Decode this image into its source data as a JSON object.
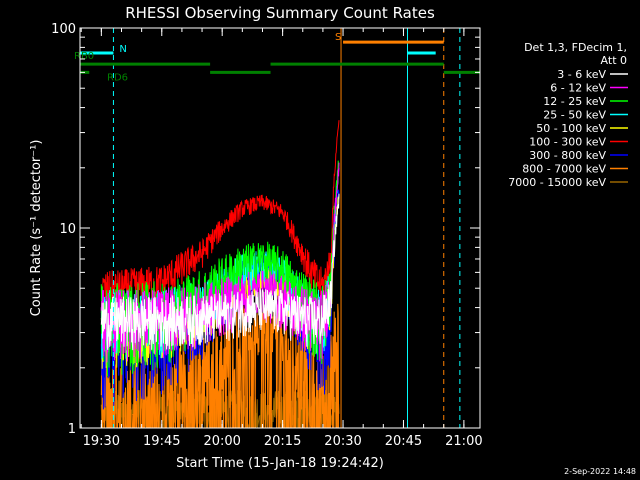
{
  "chart_data": {
    "type": "line",
    "title": "RHESSI Observing Summary Count Rates",
    "xlabel": "Start Time (15-Jan-18 19:24:42)",
    "ylabel": "Count Rate (s⁻¹ detector⁻¹)",
    "y_scale": "log",
    "ylim": [
      1,
      100
    ],
    "xlim": [
      "19:24:42",
      "21:04"
    ],
    "x_ticks": [
      "19:30",
      "19:45",
      "20:00",
      "20:15",
      "20:30",
      "20:45",
      "21:00"
    ],
    "y_ticks": [
      "1",
      "10",
      "100"
    ],
    "legend_header": [
      "Det 1,3, FDecim 1,",
      "Att 0"
    ],
    "legend_position": "right",
    "series": [
      {
        "name": "3 - 6 keV",
        "color": "#ffffff",
        "band": [
          3.0,
          4.5
        ],
        "x": [
          "19:30",
          "19:45",
          "19:55",
          "20:00",
          "20:05",
          "20:10",
          "20:15",
          "20:18",
          "20:22",
          "20:25",
          "20:27",
          "20:28",
          "20:29"
        ],
        "y": [
          3.5,
          3.5,
          3.6,
          3.7,
          3.9,
          4.0,
          3.9,
          3.7,
          3.5,
          3.5,
          4.5,
          9,
          14
        ]
      },
      {
        "name": "6 - 12 keV",
        "color": "#ff00ff",
        "band": [
          2.5,
          4.5
        ],
        "x": [
          "19:30",
          "19:45",
          "19:55",
          "20:00",
          "20:05",
          "20:10",
          "20:15",
          "20:18",
          "20:22",
          "20:25",
          "20:27",
          "20:28",
          "20:29"
        ],
        "y": [
          3.5,
          3.6,
          3.9,
          4.2,
          4.6,
          4.8,
          4.5,
          4.0,
          3.6,
          3.5,
          5,
          12,
          20
        ]
      },
      {
        "name": "12 - 25 keV",
        "color": "#00ff00",
        "band": [
          2.5,
          5.0
        ],
        "x": [
          "19:30",
          "19:45",
          "19:55",
          "20:00",
          "20:05",
          "20:10",
          "20:15",
          "20:18",
          "20:22",
          "20:25",
          "20:27",
          "20:28",
          "20:29"
        ],
        "y": [
          3.5,
          3.7,
          4.5,
          5.5,
          6.5,
          7,
          6.2,
          5,
          4,
          3.6,
          5,
          13,
          22
        ]
      },
      {
        "name": "25 - 50 keV",
        "color": "#00ffff",
        "band": [
          2.5,
          4.5
        ],
        "x": [
          "19:30",
          "19:45",
          "19:55",
          "20:00",
          "20:05",
          "20:10",
          "20:15",
          "20:18",
          "20:22",
          "20:25",
          "20:27",
          "20:28",
          "20:29"
        ],
        "y": [
          3.5,
          3.6,
          4.2,
          5,
          6,
          6.5,
          5.8,
          4.6,
          3.8,
          3.5,
          4.8,
          12,
          20
        ]
      },
      {
        "name": "50 - 100 keV",
        "color": "#ffff00",
        "band": [
          2.5,
          4.0
        ],
        "x": [
          "19:30",
          "19:45",
          "19:55",
          "20:00",
          "20:05",
          "20:10",
          "20:15",
          "20:18",
          "20:22",
          "20:25",
          "20:27",
          "20:28",
          "20:29"
        ],
        "y": [
          3.0,
          3.1,
          3.6,
          4.2,
          5,
          5.5,
          5,
          4,
          3.4,
          3.2,
          4,
          9,
          15
        ]
      },
      {
        "name": "100 - 300 keV",
        "color": "#ff0000",
        "band": [
          4.0,
          5.8
        ],
        "x": [
          "19:30",
          "19:45",
          "19:55",
          "20:00",
          "20:05",
          "20:10",
          "20:15",
          "20:18",
          "20:22",
          "20:25",
          "20:27",
          "20:28",
          "20:29"
        ],
        "y": [
          4.8,
          5.3,
          7.5,
          10,
          12.5,
          13.5,
          12,
          9,
          6,
          5,
          7,
          20,
          35
        ]
      },
      {
        "name": "300 - 800 keV",
        "color": "#0000ff",
        "band": [
          2.0,
          4.0
        ],
        "x": [
          "19:30",
          "19:45",
          "19:55",
          "20:00",
          "20:05",
          "20:10",
          "20:15",
          "20:18",
          "20:22",
          "20:25",
          "20:27",
          "20:28",
          "20:29"
        ],
        "y": [
          2.6,
          2.8,
          3.5,
          4.5,
          5.5,
          6.2,
          5.5,
          4.2,
          3.0,
          2.7,
          3.5,
          9,
          16
        ]
      },
      {
        "name": "800 - 7000 keV",
        "color": "#ff8000",
        "band": [
          1.0,
          2.5
        ],
        "x": [
          "19:30",
          "19:45",
          "19:55",
          "20:00",
          "20:05",
          "20:10",
          "20:15",
          "20:18",
          "20:22",
          "20:25",
          "20:27",
          "20:28",
          "20:29"
        ],
        "y": [
          1.5,
          1.6,
          2.0,
          2.6,
          3.2,
          3.4,
          3.2,
          2.6,
          1.8,
          1.6,
          2,
          3,
          4
        ]
      },
      {
        "name": "7000 - 15000 keV",
        "color": "#996600",
        "band": [
          1.0,
          1.5
        ],
        "x": [
          "19:30",
          "20:29"
        ],
        "y": [
          1.2,
          1.2
        ]
      }
    ],
    "state_bars": [
      {
        "label": "N",
        "color": "#00ffff",
        "level": 75,
        "segments": [
          [
            "19:24:42",
            "19:33"
          ],
          [
            "20:46",
            "20:53"
          ]
        ]
      },
      {
        "label": "S",
        "color": "#ff8000",
        "level": 85,
        "segments": [
          [
            "20:30",
            "20:55"
          ]
        ]
      },
      {
        "label": "RB0",
        "color": "#008000",
        "level": 66,
        "segments": [
          [
            "19:24:42",
            "19:57"
          ],
          [
            "20:12",
            "20:55"
          ]
        ]
      },
      {
        "label": "RD6",
        "color": "#008000",
        "level": 60,
        "segments": [
          [
            "19:24:42",
            "19:27"
          ],
          [
            "19:57",
            "20:12"
          ],
          [
            "20:55",
            "21:04"
          ]
        ]
      }
    ],
    "vertical_markers": [
      {
        "time": "19:24:42",
        "color": "#00ffff",
        "style": "solid"
      },
      {
        "time": "19:33",
        "color": "#00ffff",
        "style": "dashed"
      },
      {
        "time": "20:29:30",
        "color": "#ff8000",
        "style": "solid"
      },
      {
        "time": "20:46",
        "color": "#00ffff",
        "style": "solid"
      },
      {
        "time": "20:55",
        "color": "#ff8000",
        "style": "dashed"
      },
      {
        "time": "20:59",
        "color": "#00ffff",
        "style": "dashed"
      }
    ],
    "footer": "2-Sep-2022 14:48"
  }
}
